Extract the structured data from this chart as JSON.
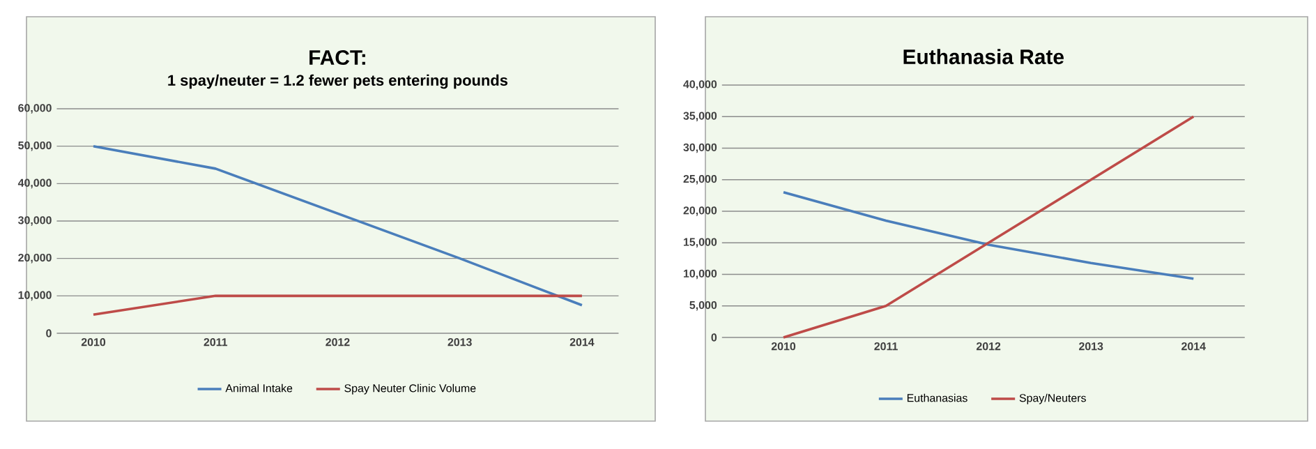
{
  "chart_data": [
    {
      "type": "line",
      "title": "FACT:",
      "subtitle": "1 spay/neuter = 1.2 fewer pets entering pounds",
      "categories": [
        "2010",
        "2011",
        "2012",
        "2013",
        "2014"
      ],
      "series": [
        {
          "name": "Animal Intake",
          "color": "#4a7ebb",
          "values": [
            50000,
            44000,
            32000,
            20000,
            7500
          ]
        },
        {
          "name": "Spay Neuter Clinic Volume",
          "color": "#be4b48",
          "values": [
            5000,
            10000,
            10000,
            10000,
            10000
          ]
        }
      ],
      "ylim": [
        0,
        60000
      ],
      "yticks": [
        0,
        {
          "value": 10000,
          "label": "10,000"
        },
        {
          "value": 20000,
          "label": "20,000"
        },
        {
          "value": 30000,
          "label": "30,000"
        },
        {
          "value": 40000,
          "label": "40,000"
        },
        {
          "value": 50000,
          "label": "50,000"
        },
        {
          "value": 60000,
          "label": "60,000"
        }
      ],
      "grid": "y",
      "legend": "bottom",
      "marker": "none",
      "line_style": "solid"
    },
    {
      "type": "line",
      "title": "Euthanasia Rate",
      "categories": [
        "2010",
        "2011",
        "2012",
        "2013",
        "2014"
      ],
      "series": [
        {
          "name": "Euthanasias",
          "color": "#4a7ebb",
          "values": [
            23000,
            18500,
            14700,
            11800,
            9300
          ]
        },
        {
          "name": "Spay/Neuters",
          "color": "#be4b48",
          "values": [
            0,
            5000,
            15000,
            25000,
            35000
          ]
        }
      ],
      "ylim": [
        0,
        40000
      ],
      "yticks": [
        0,
        {
          "value": 5000,
          "label": "5,000"
        },
        {
          "value": 10000,
          "label": "10,000"
        },
        {
          "value": 15000,
          "label": "15,000"
        },
        {
          "value": 20000,
          "label": "20,000"
        },
        {
          "value": 25000,
          "label": "25,000"
        },
        {
          "value": 30000,
          "label": "30,000"
        },
        {
          "value": 35000,
          "label": "35,000"
        },
        {
          "value": 40000,
          "label": "40,000"
        }
      ],
      "grid": "y",
      "legend": "bottom",
      "marker": "none",
      "line_style": "solid"
    }
  ]
}
